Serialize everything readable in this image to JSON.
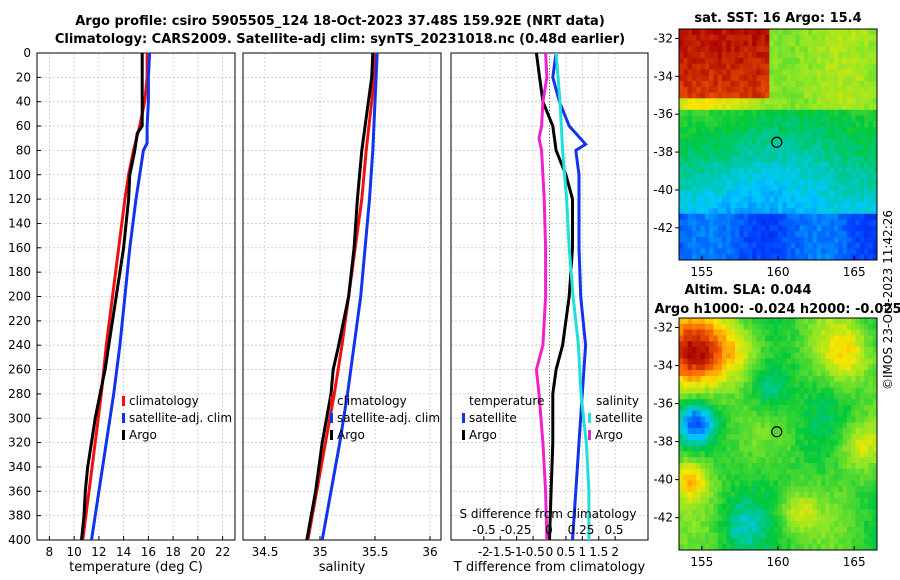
{
  "header": {
    "line1": "Argo profile: csiro 5905505_124 18-Oct-2023 37.48S 159.92E (NRT data)",
    "line2": "Climatology: CARS2009. Satellite-adj clim: synTS_20231018.nc (0.48d earlier)"
  },
  "footer": {
    "stamp": "©IMOS 23-Oct-2023 11:42:26"
  },
  "chart_data": [
    {
      "type": "line",
      "id": "temperature-profile",
      "xlabel": "temperature (deg C)",
      "ylabel": "",
      "xlim": [
        7,
        23
      ],
      "ylim": [
        400,
        0
      ],
      "xticks": [
        "8",
        "10",
        "12",
        "14",
        "16",
        "18",
        "20",
        "22"
      ],
      "yticks": [
        "0",
        "20",
        "40",
        "60",
        "80",
        "100",
        "120",
        "140",
        "160",
        "180",
        "200",
        "220",
        "240",
        "260",
        "280",
        "300",
        "320",
        "340",
        "360",
        "380",
        "400"
      ],
      "grid": true,
      "legend": {
        "placement": "bottom-right",
        "entries": [
          "climatology",
          "satellite-adj. clim",
          "Argo"
        ]
      },
      "series": [
        {
          "name": "climatology",
          "color": "#ee1111",
          "depth": [
            0,
            20,
            40,
            60,
            80,
            100,
            120,
            160,
            200,
            240,
            280,
            320,
            360,
            400
          ],
          "values": [
            15.9,
            15.9,
            15.7,
            15.3,
            14.8,
            14.4,
            14.1,
            13.6,
            13.1,
            12.6,
            12.2,
            11.7,
            11.2,
            10.7
          ]
        },
        {
          "name": "satellite-adj. clim",
          "color": "#1133ee",
          "depth": [
            0,
            20,
            40,
            60,
            74,
            80,
            100,
            120,
            160,
            200,
            240,
            280,
            320,
            360,
            400
          ],
          "values": [
            16.1,
            16.0,
            16.0,
            15.9,
            15.9,
            15.6,
            15.3,
            15.0,
            14.5,
            14.1,
            13.7,
            13.2,
            12.6,
            12.0,
            11.4
          ]
        },
        {
          "name": "Argo",
          "color": "#000000",
          "depth": [
            0,
            20,
            40,
            60,
            66,
            80,
            100,
            120,
            160,
            200,
            240,
            260,
            280,
            300,
            320,
            340,
            360,
            380,
            400
          ],
          "values": [
            15.5,
            15.5,
            15.5,
            15.5,
            15.1,
            14.9,
            14.5,
            14.4,
            14.0,
            13.4,
            12.8,
            12.5,
            12.1,
            11.7,
            11.4,
            11.1,
            10.9,
            10.8,
            10.6
          ]
        }
      ]
    },
    {
      "type": "line",
      "id": "salinity-profile",
      "xlabel": "salinity",
      "ylabel": "",
      "xlim": [
        34.3,
        36.1
      ],
      "ylim": [
        400,
        0
      ],
      "xticks": [
        "34.5",
        "35",
        "35.5",
        "36"
      ],
      "grid": true,
      "legend": {
        "placement": "bottom-right",
        "entries": [
          "climatology",
          "satellite-adj. clim",
          "Argo"
        ]
      },
      "series": [
        {
          "name": "climatology",
          "color": "#ee1111",
          "depth": [
            0,
            20,
            40,
            80,
            120,
            160,
            200,
            240,
            280,
            320,
            360,
            400
          ],
          "values": [
            35.5,
            35.49,
            35.47,
            35.42,
            35.38,
            35.32,
            35.26,
            35.2,
            35.13,
            35.05,
            34.97,
            34.89
          ]
        },
        {
          "name": "satellite-adj. clim",
          "color": "#1133ee",
          "depth": [
            0,
            20,
            40,
            80,
            120,
            160,
            200,
            240,
            280,
            320,
            360,
            400
          ],
          "values": [
            35.52,
            35.51,
            35.5,
            35.48,
            35.45,
            35.41,
            35.37,
            35.31,
            35.25,
            35.18,
            35.1,
            35.02
          ]
        },
        {
          "name": "Argo",
          "color": "#000000",
          "depth": [
            0,
            20,
            40,
            60,
            80,
            120,
            160,
            200,
            240,
            260,
            280,
            300,
            320,
            360,
            400
          ],
          "values": [
            35.48,
            35.47,
            35.44,
            35.41,
            35.38,
            35.34,
            35.31,
            35.26,
            35.17,
            35.12,
            35.1,
            35.06,
            35.02,
            34.96,
            34.88
          ]
        }
      ]
    },
    {
      "type": "line",
      "id": "difference-profile",
      "xlabel": "T difference from climatology",
      "ylabel": "",
      "xlim": [
        -3,
        3
      ],
      "ylim": [
        400,
        0
      ],
      "xticks": [
        "-2",
        "-1.5",
        "-1",
        "-0.5",
        "0",
        "0.5",
        "1",
        "1.5",
        "2"
      ],
      "s_axis": {
        "label": "S difference from climatology",
        "ticks": [
          "-0.5",
          "-0.25",
          "0",
          "0.25",
          "0.5"
        ]
      },
      "grid": true,
      "legend": {
        "placement": "bottom",
        "left_entries": [
          "temperature",
          "satellite",
          "Argo"
        ],
        "right_entries": [
          "salinity",
          "satellite",
          "Argo"
        ]
      },
      "series": [
        {
          "name": "temperature satellite",
          "color": "#1133ee",
          "depth": [
            0,
            20,
            40,
            60,
            75,
            80,
            100,
            120,
            160,
            200,
            240,
            280,
            320,
            360,
            400
          ],
          "values": [
            0.2,
            0.1,
            0.3,
            0.6,
            1.1,
            0.8,
            0.9,
            0.9,
            0.9,
            0.95,
            1.1,
            1.0,
            0.9,
            0.8,
            0.7
          ]
        },
        {
          "name": "temperature Argo",
          "color": "#000000",
          "depth": [
            0,
            20,
            40,
            60,
            80,
            100,
            120,
            160,
            200,
            240,
            260,
            280,
            320,
            360,
            400
          ],
          "values": [
            -0.4,
            -0.3,
            -0.2,
            0.1,
            0.2,
            0.5,
            0.7,
            0.7,
            0.6,
            0.4,
            0.2,
            0.1,
            0.1,
            0.05,
            0.0
          ]
        },
        {
          "name": "salinity satellite",
          "color": "#22dddd",
          "depth": [
            0,
            40,
            80,
            120,
            160,
            200,
            240,
            280,
            320,
            360,
            400
          ],
          "values": [
            0.05,
            0.08,
            0.1,
            0.13,
            0.15,
            0.18,
            0.22,
            0.24,
            0.28,
            0.3,
            0.3
          ]
        },
        {
          "name": "salinity Argo",
          "color": "#ee22cc",
          "depth": [
            0,
            20,
            40,
            60,
            70,
            80,
            120,
            160,
            200,
            240,
            260,
            280,
            320,
            360,
            400
          ],
          "values": [
            -0.03,
            -0.02,
            -0.05,
            -0.06,
            -0.08,
            -0.06,
            -0.04,
            -0.03,
            -0.03,
            -0.05,
            -0.1,
            -0.08,
            -0.05,
            -0.03,
            -0.02
          ]
        }
      ]
    },
    {
      "type": "heatmap",
      "id": "sst-map",
      "title": "sat. SST: 16 Argo: 15.4",
      "xlim": [
        153.5,
        166.5
      ],
      "ylim": [
        -43.7,
        -31.5
      ],
      "xticks": [
        "155",
        "160",
        "165"
      ],
      "yticks": [
        "-32",
        "-34",
        "-36",
        "-38",
        "-40",
        "-42"
      ],
      "argo_position": {
        "lon": 159.92,
        "lat": -37.48
      }
    },
    {
      "type": "heatmap",
      "id": "sla-map",
      "title_line1": "Altim. SLA: 0.044",
      "title_line2": "Argo h1000: -0.024 h2000: -0.025",
      "xlim": [
        153.5,
        166.5
      ],
      "ylim": [
        -43.7,
        -31.5
      ],
      "xticks": [
        "155",
        "160",
        "165"
      ],
      "yticks": [
        "-32",
        "-34",
        "-36",
        "-38",
        "-40",
        "-42"
      ],
      "argo_position": {
        "lon": 159.92,
        "lat": -37.48
      }
    }
  ]
}
